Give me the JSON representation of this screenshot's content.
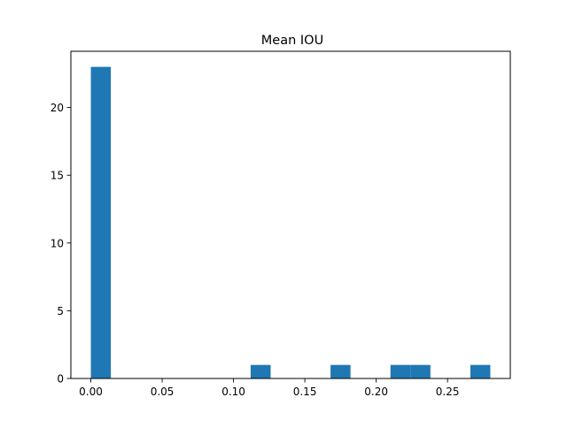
{
  "chart_data": {
    "type": "bar",
    "title": "Mean IOU",
    "xlabel": "",
    "ylabel": "",
    "xlim": [
      -0.014,
      0.294
    ],
    "ylim": [
      0,
      24.15
    ],
    "xticks": [
      0.0,
      0.05,
      0.1,
      0.15,
      0.2,
      0.25
    ],
    "xtick_labels": [
      "0.00",
      "0.05",
      "0.10",
      "0.15",
      "0.20",
      "0.25"
    ],
    "yticks": [
      0,
      5,
      10,
      15,
      20
    ],
    "ytick_labels": [
      "0",
      "5",
      "10",
      "15",
      "20"
    ],
    "bin_width": 0.014,
    "bins": [
      {
        "x0": 0.0,
        "count": 23
      },
      {
        "x0": 0.112,
        "count": 1
      },
      {
        "x0": 0.168,
        "count": 1
      },
      {
        "x0": 0.21,
        "count": 1
      },
      {
        "x0": 0.224,
        "count": 1
      },
      {
        "x0": 0.266,
        "count": 1
      }
    ],
    "bar_color": "#1f77b4",
    "grid": false,
    "legend": "none"
  }
}
